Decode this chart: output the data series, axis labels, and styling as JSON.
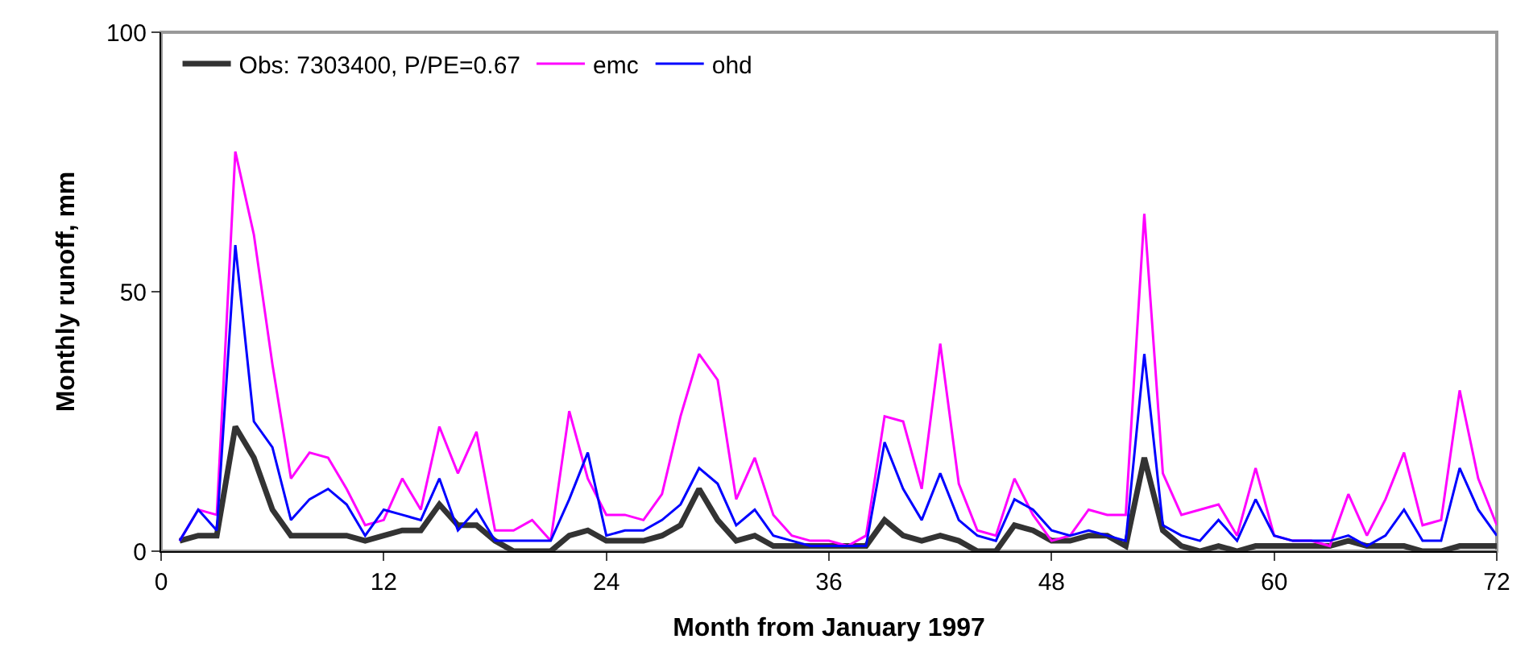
{
  "chart_data": {
    "type": "line",
    "xlabel": "Month from January 1997",
    "ylabel": "Monthly runoff, mm",
    "x": [
      1,
      2,
      3,
      4,
      5,
      6,
      7,
      8,
      9,
      10,
      11,
      12,
      13,
      14,
      15,
      16,
      17,
      18,
      19,
      20,
      21,
      22,
      23,
      24,
      25,
      26,
      27,
      28,
      29,
      30,
      31,
      32,
      33,
      34,
      35,
      36,
      37,
      38,
      39,
      40,
      41,
      42,
      43,
      44,
      45,
      46,
      47,
      48,
      49,
      50,
      51,
      52,
      53,
      54,
      55,
      56,
      57,
      58,
      59,
      60,
      61,
      62,
      63,
      64,
      65,
      66,
      67,
      68,
      69,
      70,
      71,
      72
    ],
    "series": [
      {
        "name": "Obs: 7303400, P/PE=0.67",
        "color": "#333333",
        "values": [
          2,
          3,
          3,
          24,
          18,
          8,
          3,
          3,
          3,
          3,
          2,
          3,
          4,
          4,
          9,
          5,
          5,
          2,
          0,
          0,
          0,
          3,
          4,
          2,
          2,
          2,
          3,
          5,
          12,
          6,
          2,
          3,
          1,
          1,
          1,
          1,
          1,
          1,
          6,
          3,
          2,
          3,
          2,
          0,
          0,
          5,
          4,
          2,
          2,
          3,
          3,
          1,
          18,
          4,
          1,
          0,
          1,
          0,
          1,
          1,
          1,
          1,
          1,
          2,
          1,
          1,
          1,
          0,
          0,
          1,
          1,
          1
        ]
      },
      {
        "name": "emc",
        "color": "#ff00ff",
        "values": [
          2,
          8,
          7,
          77,
          61,
          36,
          14,
          19,
          18,
          12,
          5,
          6,
          14,
          8,
          24,
          15,
          23,
          4,
          4,
          6,
          2,
          27,
          14,
          7,
          7,
          6,
          11,
          26,
          38,
          33,
          10,
          18,
          7,
          3,
          2,
          2,
          1,
          3,
          26,
          25,
          12,
          40,
          13,
          4,
          3,
          14,
          7,
          2,
          3,
          8,
          7,
          7,
          65,
          15,
          7,
          8,
          9,
          3,
          16,
          3,
          2,
          2,
          1,
          11,
          3,
          10,
          19,
          5,
          6,
          31,
          14,
          5
        ]
      },
      {
        "name": "ohd",
        "color": "#0000ff",
        "values": [
          2,
          8,
          4,
          59,
          25,
          20,
          6,
          10,
          12,
          9,
          3,
          8,
          7,
          6,
          14,
          4,
          8,
          2,
          2,
          2,
          2,
          10,
          19,
          3,
          4,
          4,
          6,
          9,
          16,
          13,
          5,
          8,
          3,
          2,
          1,
          1,
          1,
          1,
          21,
          12,
          6,
          15,
          6,
          3,
          2,
          10,
          8,
          4,
          3,
          4,
          3,
          2,
          38,
          5,
          3,
          2,
          6,
          2,
          10,
          3,
          2,
          2,
          2,
          3,
          1,
          3,
          8,
          2,
          2,
          16,
          8,
          3
        ]
      }
    ],
    "xlim": [
      0,
      72
    ],
    "xticks": [
      0,
      12,
      24,
      36,
      48,
      60,
      72
    ],
    "ylim": [
      0,
      100
    ],
    "yticks": [
      0,
      50,
      100
    ],
    "grid": false,
    "legend": "top left",
    "marker": "none",
    "line_style": "solid"
  }
}
